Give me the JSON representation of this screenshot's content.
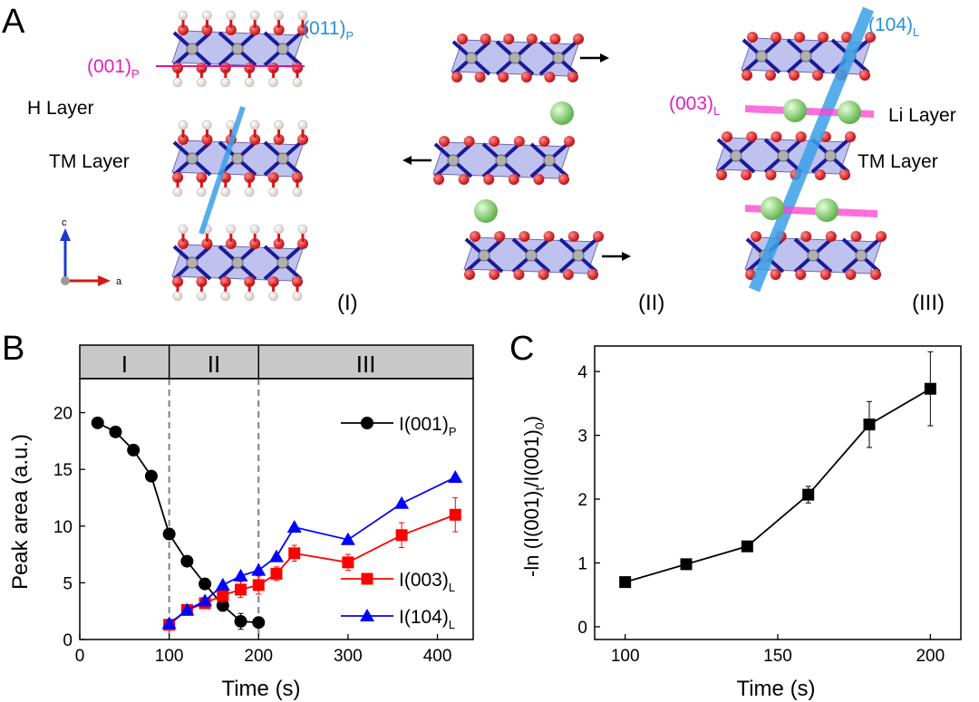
{
  "panel_a": {
    "label": "A",
    "plane_001p": "(001)",
    "plane_001p_sub": "P",
    "plane_011p": "(011)",
    "plane_011p_sub": "P",
    "h_layer": "H Layer",
    "tm_layer_left": "TM Layer",
    "axis_c": "c",
    "axis_a": "a",
    "stage_1": "(I)",
    "stage_2": "(II)",
    "stage_3": "(III)",
    "plane_104l": "(104)",
    "plane_104l_sub": "L",
    "plane_003l": "(003)",
    "plane_003l_sub": "L",
    "li_layer": "Li Layer",
    "tm_layer_right": "TM Layer",
    "colors": {
      "oxygen": "#d0151a",
      "hydrogen": "#f4e8e8",
      "tm_polyhedra": "#8a8fe0",
      "lithium": "#8fd67a",
      "plane_blue": "#3aa0e8",
      "plane_magenta": "#ff3fd0"
    }
  },
  "chart_data": [
    {
      "panel": "B",
      "type": "line",
      "xlabel": "Time (s)",
      "ylabel": "Peak area (a.u.)",
      "xlim": [
        0,
        440
      ],
      "ylim": [
        0,
        23
      ],
      "xticks": [
        0,
        100,
        200,
        300,
        400
      ],
      "yticks": [
        0,
        5,
        10,
        15,
        20
      ],
      "grid": false,
      "legend": "right",
      "stages": [
        {
          "label": "I",
          "from": 0,
          "to": 100
        },
        {
          "label": "II",
          "from": 100,
          "to": 200
        },
        {
          "label": "III",
          "from": 200,
          "to": 440
        }
      ],
      "dividers": [
        100,
        200
      ],
      "series": [
        {
          "name": "I(001)",
          "name_sub": "P",
          "marker": "circle",
          "color": "#000000",
          "x": [
            20,
            40,
            60,
            80,
            100,
            120,
            140,
            160,
            180,
            200
          ],
          "y": [
            19.1,
            18.3,
            16.7,
            14.4,
            9.3,
            6.9,
            4.9,
            3.0,
            1.6,
            1.5
          ],
          "err": [
            0,
            0,
            0,
            0,
            0,
            0,
            0,
            0.5,
            0.7,
            0.3
          ]
        },
        {
          "name": "I(003)",
          "name_sub": "L",
          "marker": "square",
          "color": "#ff0000",
          "x": [
            100,
            120,
            140,
            160,
            180,
            200,
            220,
            240,
            300,
            360,
            420
          ],
          "y": [
            1.3,
            2.6,
            3.2,
            3.9,
            4.4,
            4.8,
            5.8,
            7.6,
            6.8,
            9.2,
            11.0
          ],
          "err": [
            0.3,
            0.3,
            0.4,
            0.6,
            0.7,
            0.8,
            0.6,
            0.7,
            0.7,
            1.1,
            1.5
          ]
        },
        {
          "name": "I(104)",
          "name_sub": "L",
          "marker": "triangle",
          "color": "#0000ff",
          "x": [
            100,
            120,
            140,
            160,
            180,
            200,
            220,
            240,
            300,
            360,
            420
          ],
          "y": [
            1.4,
            2.6,
            3.4,
            4.8,
            5.6,
            6.1,
            7.3,
            9.9,
            8.8,
            12.0,
            14.3
          ],
          "err": [
            0,
            0,
            0,
            0,
            0,
            0,
            0,
            0,
            0,
            0,
            0
          ]
        }
      ]
    },
    {
      "panel": "C",
      "type": "line",
      "xlabel": "Time (s)",
      "ylabel": "-ln (I(001)t/I(001)0)",
      "ylabel_parts": [
        "-ln (I(001)",
        "t",
        "/I(001)",
        "0",
        ")"
      ],
      "xlim": [
        90,
        210
      ],
      "ylim": [
        -0.2,
        4.4
      ],
      "xticks": [
        100,
        150,
        200
      ],
      "yticks": [
        0,
        1,
        2,
        3,
        4
      ],
      "grid": false,
      "series": [
        {
          "marker": "square",
          "color": "#000000",
          "x": [
            100,
            120,
            140,
            160,
            180,
            200
          ],
          "y": [
            0.7,
            0.98,
            1.26,
            2.07,
            3.17,
            3.73
          ],
          "err": [
            0,
            0,
            0,
            0.13,
            0.36,
            0.58
          ]
        }
      ]
    }
  ]
}
